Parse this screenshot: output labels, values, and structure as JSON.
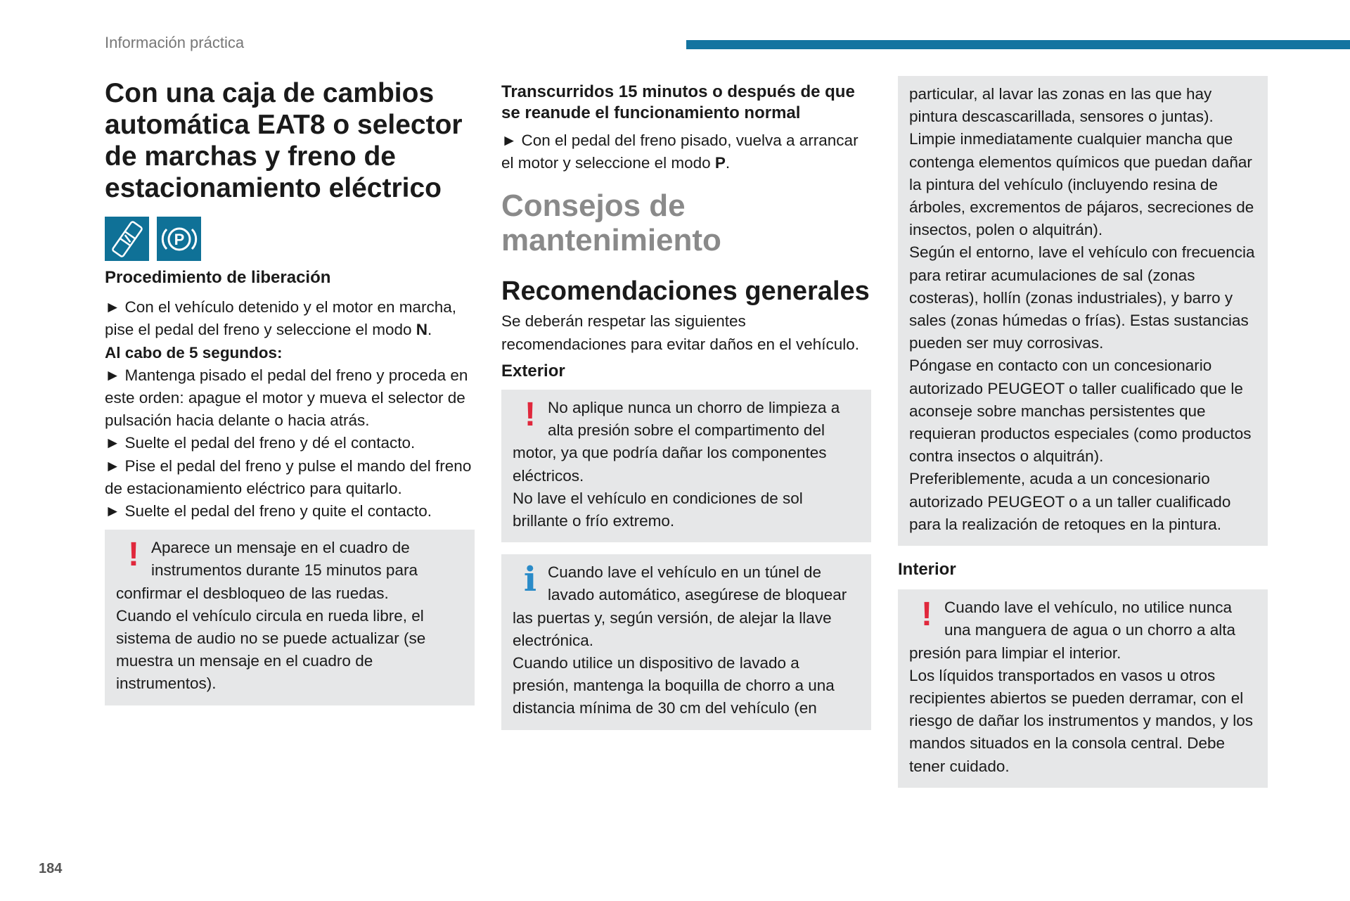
{
  "header": {
    "section": "Información práctica",
    "accent_color": "#1474a0"
  },
  "page_number": "184",
  "col1": {
    "title": "Con una caja de cambios automática EAT8 o selector de marchas y freno de estacionamiento eléctrico",
    "icons": [
      "gear-selector-icon",
      "parking-brake-icon"
    ],
    "subtitle": "Procedimiento de liberación",
    "step1_pre": "► Con el vehículo detenido y el motor en marcha, pise el pedal del freno y seleccione el modo ",
    "step1_bold": "N",
    "step1_post": ".",
    "after": "Al cabo de 5 segundos:",
    "step2": "► Mantenga pisado el pedal del freno y proceda en este orden: apague el motor y mueva el selector de pulsación hacia delante o hacia atrás.",
    "step3": "► Suelte el pedal del freno y dé el contacto.",
    "step4": "► Pise el pedal del freno y pulse el mando del freno de estacionamiento eléctrico para quitarlo.",
    "step5": "► Suelte el pedal del freno y quite el contacto.",
    "warning": "Aparece un mensaje en el cuadro de instrumentos durante 15 minutos para confirmar el desbloqueo de las ruedas.",
    "warning2": "Cuando el vehículo circula en rueda libre, el sistema de audio no se puede actualizar (se muestra un mensaje en el cuadro de instrumentos)."
  },
  "col2": {
    "heading": "Transcurridos 15 minutos o después de que se reanude el funcionamiento normal",
    "step_pre": "► Con el pedal del freno pisado, vuelva a arrancar el motor y seleccione el modo ",
    "step_bold": "P",
    "step_post": ".",
    "section_title": "Consejos de mantenimiento",
    "rec_title": "Recomendaciones generales",
    "rec_text": "Se deberán respetar las siguientes recomendaciones para evitar daños en el vehículo.",
    "exterior": "Exterior",
    "warning1a": "No aplique nunca un chorro de limpieza a alta presión sobre el compartimento del motor, ya que podría dañar los componentes eléctricos.",
    "warning1b": "No lave el vehículo en condiciones de sol brillante o frío extremo.",
    "info_a": "Cuando lave el vehículo en un túnel de lavado automático, asegúrese de bloquear las puertas y, según versión, de alejar la llave electrónica.",
    "info_b": "Cuando utilice un dispositivo de lavado a presión, mantenga la boquilla de chorro a una distancia mínima de 30 cm del vehículo (en"
  },
  "col3": {
    "box_p1": "particular, al lavar las zonas en las que hay pintura descascarillada, sensores o juntas).",
    "box_p2": "Limpie inmediatamente cualquier mancha que contenga elementos químicos que puedan dañar la pintura del vehículo (incluyendo resina de árboles, excrementos de pájaros, secreciones de insectos, polen o alquitrán).",
    "box_p3": "Según el entorno, lave el vehículo con frecuencia para retirar acumulaciones de sal (zonas costeras), hollín (zonas industriales), y barro y sales (zonas húmedas o frías). Estas sustancias pueden ser muy corrosivas.",
    "box_p4": "Póngase en contacto con un concesionario autorizado PEUGEOT o taller cualificado que le aconseje sobre manchas persistentes que requieran productos especiales (como productos contra insectos o alquitrán).",
    "box_p5": "Preferiblemente, acuda a un concesionario autorizado PEUGEOT o a un taller cualificado para la realización de retoques en la pintura.",
    "interior": "Interior",
    "warning_a": "Cuando lave el vehículo, no utilice nunca una manguera de agua o un chorro a alta presión para limpiar el interior.",
    "warning_b": "Los líquidos transportados en vasos u otros recipientes abiertos se pueden derramar, con el riesgo de dañar los instrumentos y mandos, y los mandos situados en la consola central. Debe tener cuidado."
  },
  "marks": {
    "warning": "!",
    "info": "i"
  }
}
